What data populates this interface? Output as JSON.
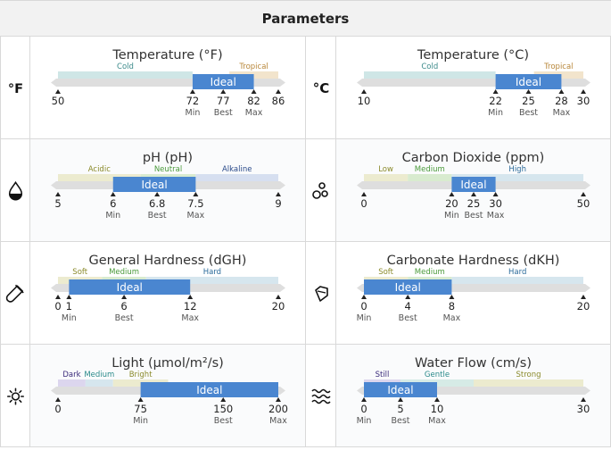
{
  "header": {
    "title": "Parameters"
  },
  "parameters": [
    {
      "id": "temp_f",
      "title": "Temperature (°F)",
      "icon": "fahrenheit-icon",
      "min": 50,
      "max": 86,
      "ranges": [
        {
          "label": "Cold",
          "from": 50,
          "to": 72,
          "color": "#cfe6e6",
          "text_color": "#3b8a8a"
        },
        {
          "label": "Tropical",
          "from": 78,
          "to": 86,
          "color": "#f2e4cc",
          "text_color": "#b8873a"
        }
      ],
      "ideal": {
        "label": "Ideal",
        "from": 72,
        "to": 82
      },
      "ticks": [
        {
          "value": 50,
          "label": "50",
          "sub": ""
        },
        {
          "value": 72,
          "label": "72",
          "sub": "Min"
        },
        {
          "value": 77,
          "label": "77",
          "sub": "Best"
        },
        {
          "value": 82,
          "label": "82",
          "sub": "Max"
        },
        {
          "value": 86,
          "label": "86",
          "sub": ""
        }
      ]
    },
    {
      "id": "temp_c",
      "title": "Temperature (°C)",
      "icon": "celsius-icon",
      "min": 10,
      "max": 30,
      "ranges": [
        {
          "label": "Cold",
          "from": 10,
          "to": 22,
          "color": "#cfe6e6",
          "text_color": "#3b8a8a"
        },
        {
          "label": "Tropical",
          "from": 25.5,
          "to": 30,
          "color": "#f2e4cc",
          "text_color": "#b8873a"
        }
      ],
      "ideal": {
        "label": "Ideal",
        "from": 22,
        "to": 28
      },
      "ticks": [
        {
          "value": 10,
          "label": "10",
          "sub": ""
        },
        {
          "value": 22,
          "label": "22",
          "sub": "Min"
        },
        {
          "value": 25,
          "label": "25",
          "sub": "Best"
        },
        {
          "value": 28,
          "label": "28",
          "sub": "Max"
        },
        {
          "value": 30,
          "label": "30",
          "sub": ""
        }
      ]
    },
    {
      "id": "ph",
      "title": "pH (pH)",
      "icon": "water-drop-icon",
      "min": 5,
      "max": 9,
      "ranges": [
        {
          "label": "Acidic",
          "from": 5,
          "to": 6.5,
          "color": "#ecebcf",
          "text_color": "#8a8a2a"
        },
        {
          "label": "Neutral",
          "from": 6.5,
          "to": 7.5,
          "color": "#d8ebcf",
          "text_color": "#4a9a3a"
        },
        {
          "label": "Alkaline",
          "from": 7.5,
          "to": 9,
          "color": "#d6dff0",
          "text_color": "#2a4a8a"
        }
      ],
      "ideal": {
        "label": "Ideal",
        "from": 6,
        "to": 7.5
      },
      "ticks": [
        {
          "value": 5,
          "label": "5",
          "sub": ""
        },
        {
          "value": 6,
          "label": "6",
          "sub": "Min"
        },
        {
          "value": 6.8,
          "label": "6.8",
          "sub": "Best"
        },
        {
          "value": 7.5,
          "label": "7.5",
          "sub": "Max"
        },
        {
          "value": 9,
          "label": "9",
          "sub": ""
        }
      ]
    },
    {
      "id": "co2",
      "title": "Carbon Dioxide (ppm)",
      "icon": "bubbles-icon",
      "min": 0,
      "max": 50,
      "ranges": [
        {
          "label": "Low",
          "from": 0,
          "to": 10,
          "color": "#ecebcf",
          "text_color": "#8a8a2a"
        },
        {
          "label": "Medium",
          "from": 10,
          "to": 20,
          "color": "#d8ebcf",
          "text_color": "#4a9a3a"
        },
        {
          "label": "High",
          "from": 20,
          "to": 50,
          "color": "#d6e6ee",
          "text_color": "#2a6a9a"
        }
      ],
      "ideal": {
        "label": "Ideal",
        "from": 20,
        "to": 30
      },
      "ticks": [
        {
          "value": 0,
          "label": "0",
          "sub": ""
        },
        {
          "value": 20,
          "label": "20",
          "sub": "Min"
        },
        {
          "value": 25,
          "label": "25",
          "sub": "Best"
        },
        {
          "value": 30,
          "label": "30",
          "sub": "Max"
        },
        {
          "value": 50,
          "label": "50",
          "sub": ""
        }
      ]
    },
    {
      "id": "gh",
      "title": "General Hardness (dGH)",
      "icon": "test-tube-icon",
      "min": 0,
      "max": 20,
      "ranges": [
        {
          "label": "Soft",
          "from": 0,
          "to": 4,
          "color": "#ecebcf",
          "text_color": "#8a8a2a"
        },
        {
          "label": "Medium",
          "from": 4,
          "to": 8,
          "color": "#d8ebcf",
          "text_color": "#4a9a3a"
        },
        {
          "label": "Hard",
          "from": 8,
          "to": 20,
          "color": "#d6e6ee",
          "text_color": "#2a6a9a"
        }
      ],
      "ideal": {
        "label": "Ideal",
        "from": 1,
        "to": 12
      },
      "ticks": [
        {
          "value": 0,
          "label": "0",
          "sub": ""
        },
        {
          "value": 1,
          "label": "1",
          "sub": "Min"
        },
        {
          "value": 6,
          "label": "6",
          "sub": "Best"
        },
        {
          "value": 12,
          "label": "12",
          "sub": "Max"
        },
        {
          "value": 20,
          "label": "20",
          "sub": ""
        }
      ]
    },
    {
      "id": "kh",
      "title": "Carbonate Hardness (dKH)",
      "icon": "gem-icon",
      "min": 0,
      "max": 20,
      "ranges": [
        {
          "label": "Soft",
          "from": 0,
          "to": 4,
          "color": "#ecebcf",
          "text_color": "#8a8a2a"
        },
        {
          "label": "Medium",
          "from": 4,
          "to": 8,
          "color": "#d8ebcf",
          "text_color": "#4a9a3a"
        },
        {
          "label": "Hard",
          "from": 8,
          "to": 20,
          "color": "#d6e6ee",
          "text_color": "#2a6a9a"
        }
      ],
      "ideal": {
        "label": "Ideal",
        "from": 0,
        "to": 8
      },
      "ticks": [
        {
          "value": 0,
          "label": "0",
          "sub": "Min"
        },
        {
          "value": 4,
          "label": "4",
          "sub": "Best"
        },
        {
          "value": 8,
          "label": "8",
          "sub": "Max"
        },
        {
          "value": 20,
          "label": "20",
          "sub": ""
        }
      ]
    },
    {
      "id": "light",
      "title": "Light (µmol/m²/s)",
      "icon": "sun-icon",
      "min": 0,
      "max": 200,
      "ranges": [
        {
          "label": "Dark",
          "from": 0,
          "to": 25,
          "color": "#dcd6ee",
          "text_color": "#3a2a7a"
        },
        {
          "label": "Medium",
          "from": 25,
          "to": 50,
          "color": "#d6e6ee",
          "text_color": "#2a8a8a"
        },
        {
          "label": "Bright",
          "from": 50,
          "to": 100,
          "color": "#ecebcf",
          "text_color": "#8a8a2a"
        }
      ],
      "ideal": {
        "label": "Ideal",
        "from": 75,
        "to": 200
      },
      "ticks": [
        {
          "value": 0,
          "label": "0",
          "sub": ""
        },
        {
          "value": 75,
          "label": "75",
          "sub": "Min"
        },
        {
          "value": 150,
          "label": "150",
          "sub": "Best"
        },
        {
          "value": 200,
          "label": "200",
          "sub": "Max"
        }
      ]
    },
    {
      "id": "flow",
      "title": "Water Flow (cm/s)",
      "icon": "waves-icon",
      "min": 0,
      "max": 30,
      "ranges": [
        {
          "label": "Still",
          "from": 0,
          "to": 5,
          "color": "#dcd6ee",
          "text_color": "#3a2a7a"
        },
        {
          "label": "Gentle",
          "from": 5,
          "to": 15,
          "color": "#d6ebe6",
          "text_color": "#2a8a8a"
        },
        {
          "label": "Strong",
          "from": 15,
          "to": 30,
          "color": "#ecebcf",
          "text_color": "#8a8a2a"
        }
      ],
      "ideal": {
        "label": "Ideal",
        "from": 0,
        "to": 10
      },
      "ticks": [
        {
          "value": 0,
          "label": "0",
          "sub": "Min"
        },
        {
          "value": 5,
          "label": "5",
          "sub": "Best"
        },
        {
          "value": 10,
          "label": "10",
          "sub": "Max"
        },
        {
          "value": 30,
          "label": "30",
          "sub": ""
        }
      ]
    }
  ],
  "colors": {
    "ideal": "#4a86d0",
    "track": "#dedede",
    "grid_border": "#d9d9d9",
    "header_bg": "#f2f2f2"
  }
}
